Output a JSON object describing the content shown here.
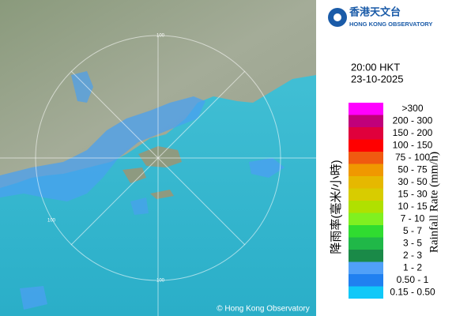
{
  "logo": {
    "chinese": "香港天文台",
    "english": "HONG KONG OBSERVATORY"
  },
  "time": "20:00 HKT",
  "date": "23-10-2025",
  "legend": {
    "title_zh": "降雨率(毫米/小時)",
    "title_en": "Rainfall Rate (mm/h)",
    "items": [
      {
        "label": ">300",
        "color": "#ff00ff"
      },
      {
        "label": "200 - 300",
        "color": "#c0007a"
      },
      {
        "label": "150 - 200",
        "color": "#e0003c"
      },
      {
        "label": "100 - 150",
        "color": "#ff0000"
      },
      {
        "label": "75 - 100",
        "color": "#f05a10"
      },
      {
        "label": "50 - 75",
        "color": "#f09800"
      },
      {
        "label": "30 - 50",
        "color": "#e6b800"
      },
      {
        "label": "15 - 30",
        "color": "#d8cc00"
      },
      {
        "label": "10 - 15",
        "color": "#b0e000"
      },
      {
        "label": "7 - 10",
        "color": "#80f020"
      },
      {
        "label": "5 - 7",
        "color": "#30dc30"
      },
      {
        "label": "3 - 5",
        "color": "#20b848"
      },
      {
        "label": "2 - 3",
        "color": "#1a8a48"
      },
      {
        "label": "1 - 2",
        "color": "#50a0f8"
      },
      {
        "label": "0.50 - 1",
        "color": "#2080f0"
      },
      {
        "label": "0.15 - 0.50",
        "color": "#10c8f8"
      }
    ]
  },
  "map": {
    "ring_labels": [
      "100",
      "100",
      "100"
    ]
  },
  "copyright": "© Hong Kong Observatory"
}
